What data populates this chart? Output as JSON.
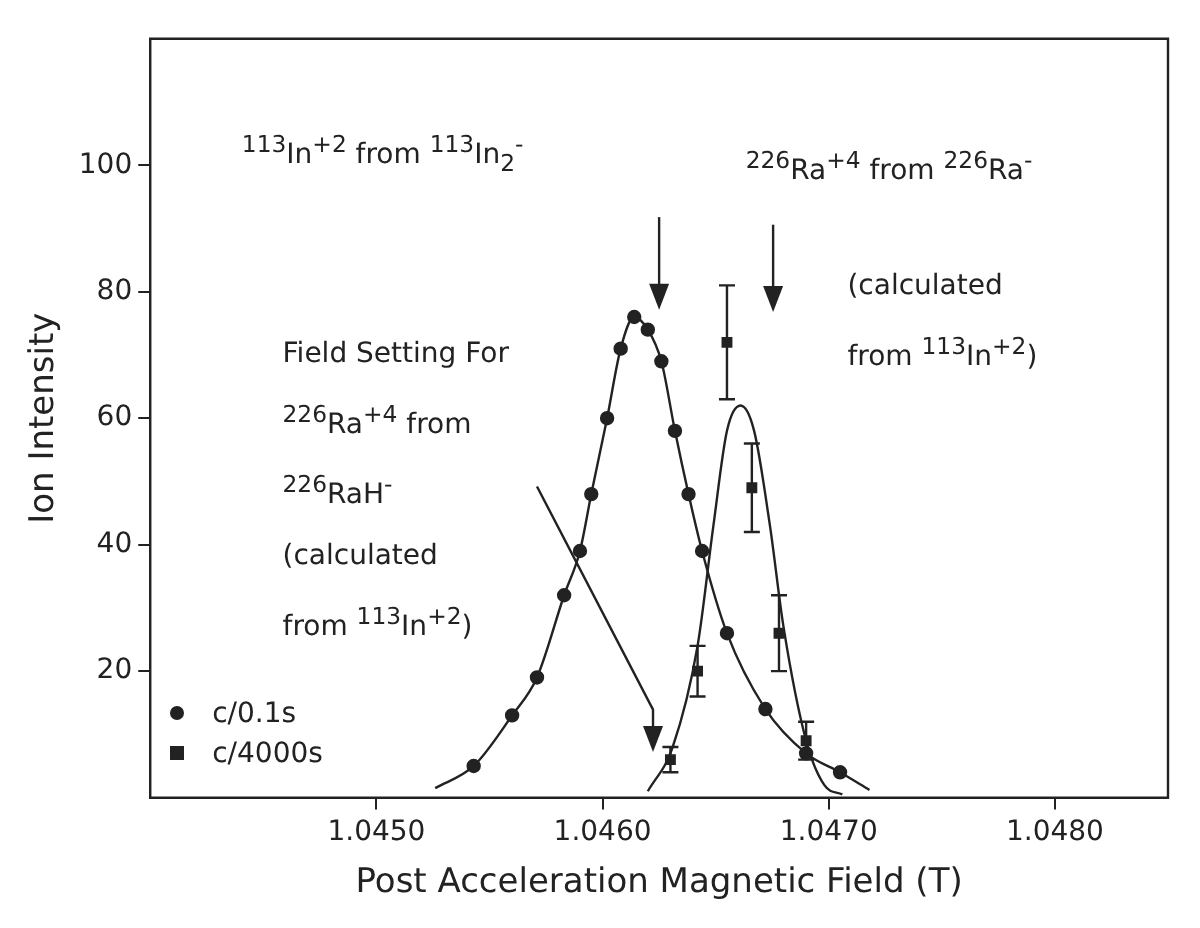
{
  "chart_data": {
    "type": "scatter",
    "xlabel": "Post Acceleration Magnetic Field (T)",
    "ylabel": "Ion Intensity",
    "xlim": [
      1.044,
      1.0485
    ],
    "ylim": [
      0,
      120
    ],
    "xticks": [
      {
        "value": 1.045,
        "label": "1.0450"
      },
      {
        "value": 1.046,
        "label": "1.0460"
      },
      {
        "value": 1.047,
        "label": "1.0470"
      },
      {
        "value": 1.048,
        "label": "1.0480"
      }
    ],
    "yticks": [
      20,
      40,
      60,
      80,
      100
    ],
    "legend": "bottom left",
    "series": [
      {
        "name": "c/0.1s",
        "marker": "circle",
        "color": "#222222",
        "x": [
          1.04543,
          1.0456,
          1.04571,
          1.04583,
          1.0459,
          1.04595,
          1.04602,
          1.04608,
          1.04614,
          1.0462,
          1.04626,
          1.04632,
          1.04638,
          1.04644,
          1.04655,
          1.04672,
          1.0469,
          1.04705
        ],
        "values": [
          5,
          13,
          19,
          32,
          39,
          48,
          60,
          71,
          76,
          74,
          69,
          58,
          48,
          39,
          26,
          14,
          7,
          4
        ]
      },
      {
        "name": "c/4000s",
        "marker": "square",
        "color": "#222222",
        "x": [
          1.0463,
          1.04642,
          1.04655,
          1.04666,
          1.04678,
          1.0469
        ],
        "values": [
          6,
          20,
          72,
          49,
          26,
          9
        ],
        "errors": [
          2,
          4,
          9,
          7,
          6,
          3
        ]
      },
      {
        "type": "line",
        "marker": "none",
        "color": "#222222",
        "x": [
          1.04526,
          1.04543,
          1.0456,
          1.04571,
          1.04583,
          1.0459,
          1.04595,
          1.04602,
          1.04608,
          1.04614,
          1.0462,
          1.04626,
          1.04632,
          1.04638,
          1.04644,
          1.04655,
          1.04672,
          1.0469,
          1.04705,
          1.04718
        ],
        "values": [
          1.5,
          5,
          13,
          19,
          32,
          39,
          48,
          60,
          71,
          76,
          74,
          69,
          58,
          48,
          39,
          26,
          14,
          7,
          4,
          1.2
        ]
      },
      {
        "type": "line",
        "marker": "none",
        "color": "#222222",
        "x": [
          1.0462,
          1.04631,
          1.04642,
          1.04649,
          1.04655,
          1.04661,
          1.04667,
          1.04674,
          1.0468,
          1.0469,
          1.04698,
          1.04706
        ],
        "values": [
          1,
          8,
          24,
          43,
          58,
          62,
          58,
          43,
          27,
          9,
          2,
          0.5
        ]
      }
    ],
    "annotations": [
      "$^{113}$In$^{+2}$ from $^{113}$In$_{2}$$^{-}$",
      "$^{226}$Ra$^{+4}$ from $^{226}$Ra$^{-}$",
      "(calculated\nfrom $^{113}$In$^{+2}$)",
      "Field Setting For\n$^{226}$Ra$^{+4}$ from\n$^{226}$RaH$^{-}$\n(calculated\nfrom $^{113}$In$^{+2}$)"
    ]
  }
}
